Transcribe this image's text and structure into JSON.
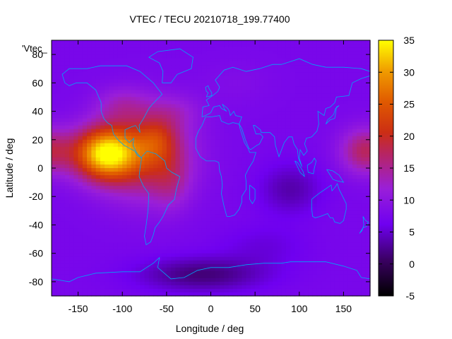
{
  "chart_data": {
    "type": "heatmap",
    "title": "VTEC / TECU 20210718_199.77400",
    "xlabel": "Longitude / deg",
    "ylabel": "Latitude / deg",
    "legend_label": "'Vtec_",
    "xlim": [
      -180,
      180
    ],
    "ylim": [
      -90,
      90
    ],
    "xticks": [
      -150,
      -100,
      -50,
      0,
      50,
      100,
      150
    ],
    "yticks": [
      -80,
      -60,
      -40,
      -20,
      0,
      20,
      40,
      60,
      80
    ],
    "colorbar": {
      "range": [
        -5,
        35
      ],
      "ticks": [
        -5,
        0,
        5,
        10,
        15,
        20,
        25,
        30,
        35
      ]
    },
    "features": [
      {
        "lon": -120,
        "lat": 10,
        "vtec": 33
      },
      {
        "lon": -95,
        "lat": 5,
        "vtec": 25
      },
      {
        "lon": -60,
        "lat": 15,
        "vtec": 21
      },
      {
        "lon": -45,
        "lat": -10,
        "vtec": 16
      },
      {
        "lon": 170,
        "lat": 12,
        "vtec": 18
      },
      {
        "lon": 90,
        "lat": -15,
        "vtec": 3
      },
      {
        "lon": -10,
        "lat": -75,
        "vtec": 1
      },
      {
        "lon": 0,
        "lat": 20,
        "vtec": 7
      }
    ],
    "coastline_color": "#00a6f5"
  }
}
